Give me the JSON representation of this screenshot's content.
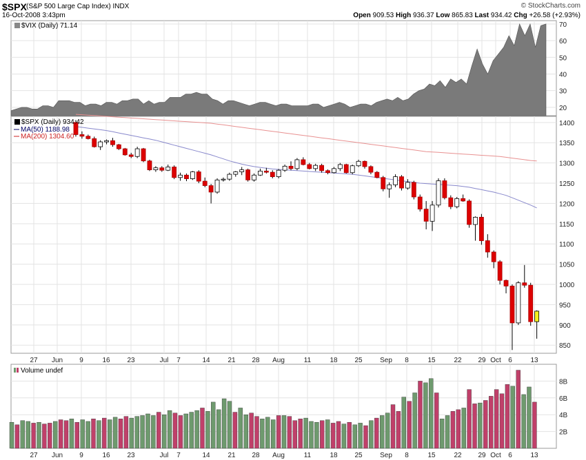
{
  "header": {
    "symbol": "$SPX",
    "symbol_name": "(S&P 500 Large Cap Index) INDX",
    "datetime": "16-Oct-2008 3:43pm",
    "brand": "© StockCharts.com",
    "open_label": "Open",
    "open": "909.53",
    "high_label": "High",
    "high": "936.37",
    "low_label": "Low",
    "low": "865.83",
    "last_label": "Last",
    "last": "934.42",
    "chg_label": "Chg",
    "chg": "+26.58 (+2.93%)"
  },
  "legend": {
    "vix": "$VIX (Daily) 71.14",
    "spx": "$SPX (Daily) 934.42",
    "ma50": "MA(50) 1188.98",
    "ma200": "MA(200) 1304.60",
    "volume": "Volume undef"
  },
  "colors": {
    "up_candle": "#ffffff",
    "down_candle": "#dd0000",
    "vol_up": "#6e9a6e",
    "vol_down": "#c0406a",
    "vix_fill": "#7a7a7a",
    "ma50": "#8888cc",
    "ma200": "#e89090",
    "last_highlight": "#f5f020"
  },
  "chart_data": [
    {
      "type": "area",
      "title": "$VIX (Daily) 71.14",
      "ylim": [
        15,
        72
      ],
      "yticks": [
        20,
        30,
        40,
        50,
        60,
        70
      ],
      "values": [
        18,
        19,
        20,
        20,
        19,
        19,
        21,
        21,
        20,
        24,
        24,
        24,
        23,
        23,
        21,
        22,
        22,
        21,
        23,
        23,
        22,
        24,
        24,
        25,
        25,
        22,
        24,
        22,
        23,
        23,
        26,
        26,
        26,
        28,
        28,
        29,
        28,
        28,
        25,
        24,
        22,
        24,
        24,
        23,
        22,
        21,
        22,
        23,
        23,
        22,
        21,
        22,
        22,
        21,
        21,
        21,
        21,
        22,
        22,
        20,
        21,
        22,
        23,
        22,
        20,
        21,
        22,
        22,
        21,
        23,
        24,
        25,
        24,
        26,
        24,
        25,
        28,
        30,
        31,
        34,
        33,
        36,
        32,
        37,
        35,
        37,
        34,
        45,
        55,
        46,
        40,
        48,
        52,
        56,
        63,
        57,
        70,
        63,
        70,
        56,
        69,
        70
      ]
    },
    {
      "type": "candlestick",
      "title": "$SPX (Daily) 934.42",
      "ylim": [
        830,
        1415
      ],
      "yticks": [
        850,
        900,
        950,
        1000,
        1050,
        1100,
        1150,
        1200,
        1250,
        1300,
        1350,
        1400
      ],
      "x_tick_labels": [
        "27",
        "Jun",
        "9",
        "16",
        "23",
        "Jul",
        "7",
        "14",
        "21",
        "28",
        "Aug",
        "11",
        "18",
        "25",
        "Sep",
        "8",
        "15",
        "22",
        "29",
        "Oct",
        "6",
        "13"
      ],
      "ohlc": [
        [
          1400,
          1406,
          1365,
          1370
        ],
        [
          1370,
          1378,
          1360,
          1366
        ],
        [
          1366,
          1370,
          1358,
          1360
        ],
        [
          1360,
          1365,
          1338,
          1340
        ],
        [
          1340,
          1356,
          1332,
          1352
        ],
        [
          1352,
          1358,
          1346,
          1355
        ],
        [
          1355,
          1362,
          1340,
          1345
        ],
        [
          1345,
          1347,
          1332,
          1335
        ],
        [
          1335,
          1337,
          1318,
          1320
        ],
        [
          1320,
          1325,
          1312,
          1316
        ],
        [
          1316,
          1340,
          1312,
          1335
        ],
        [
          1335,
          1337,
          1302,
          1305
        ],
        [
          1305,
          1308,
          1280,
          1283
        ],
        [
          1283,
          1292,
          1278,
          1288
        ],
        [
          1288,
          1292,
          1278,
          1282
        ],
        [
          1282,
          1296,
          1280,
          1290
        ],
        [
          1290,
          1294,
          1260,
          1264
        ],
        [
          1264,
          1276,
          1256,
          1270
        ],
        [
          1270,
          1274,
          1255,
          1261
        ],
        [
          1261,
          1280,
          1258,
          1278
        ],
        [
          1278,
          1282,
          1250,
          1255
        ],
        [
          1255,
          1264,
          1240,
          1244
        ],
        [
          1244,
          1248,
          1200,
          1228
        ],
        [
          1228,
          1262,
          1224,
          1258
        ],
        [
          1258,
          1264,
          1254,
          1260
        ],
        [
          1260,
          1276,
          1256,
          1272
        ],
        [
          1272,
          1280,
          1266,
          1278
        ],
        [
          1278,
          1290,
          1270,
          1283
        ],
        [
          1283,
          1286,
          1254,
          1258
        ],
        [
          1258,
          1274,
          1254,
          1270
        ],
        [
          1270,
          1286,
          1268,
          1280
        ],
        [
          1280,
          1288,
          1274,
          1277
        ],
        [
          1277,
          1282,
          1262,
          1266
        ],
        [
          1266,
          1285,
          1262,
          1282
        ],
        [
          1282,
          1296,
          1278,
          1292
        ],
        [
          1292,
          1304,
          1282,
          1286
        ],
        [
          1286,
          1312,
          1282,
          1308
        ],
        [
          1308,
          1314,
          1294,
          1296
        ],
        [
          1296,
          1300,
          1284,
          1286
        ],
        [
          1286,
          1298,
          1280,
          1294
        ],
        [
          1294,
          1298,
          1276,
          1281
        ],
        [
          1281,
          1284,
          1272,
          1276
        ],
        [
          1276,
          1290,
          1274,
          1286
        ],
        [
          1286,
          1300,
          1280,
          1296
        ],
        [
          1296,
          1298,
          1274,
          1276
        ],
        [
          1276,
          1296,
          1272,
          1293
        ],
        [
          1293,
          1308,
          1290,
          1304
        ],
        [
          1304,
          1306,
          1286,
          1291
        ],
        [
          1291,
          1294,
          1272,
          1277
        ],
        [
          1277,
          1280,
          1262,
          1264
        ],
        [
          1264,
          1268,
          1230,
          1236
        ],
        [
          1236,
          1252,
          1214,
          1246
        ],
        [
          1246,
          1272,
          1240,
          1266
        ],
        [
          1266,
          1270,
          1232,
          1238
        ],
        [
          1238,
          1260,
          1234,
          1252
        ],
        [
          1252,
          1256,
          1210,
          1216
        ],
        [
          1216,
          1222,
          1180,
          1186
        ],
        [
          1186,
          1206,
          1136,
          1156
        ],
        [
          1156,
          1206,
          1132,
          1196
        ],
        [
          1196,
          1262,
          1190,
          1256
        ],
        [
          1256,
          1262,
          1210,
          1214
        ],
        [
          1214,
          1220,
          1186,
          1192
        ],
        [
          1192,
          1216,
          1188,
          1212
        ],
        [
          1212,
          1222,
          1204,
          1206
        ],
        [
          1206,
          1210,
          1140,
          1148
        ],
        [
          1148,
          1168,
          1108,
          1166
        ],
        [
          1166,
          1174,
          1098,
          1108
        ],
        [
          1108,
          1124,
          1066,
          1080
        ],
        [
          1080,
          1084,
          1040,
          1056
        ],
        [
          1056,
          1060,
          1000,
          1010
        ],
        [
          1010,
          1012,
          978,
          996
        ],
        [
          996,
          1000,
          838,
          905
        ],
        [
          905,
          1008,
          900,
          1004
        ],
        [
          1004,
          1048,
          992,
          998
        ],
        [
          998,
          1004,
          898,
          908
        ],
        [
          908,
          936,
          866,
          934
        ]
      ],
      "ma50": [
        1390,
        1388,
        1386,
        1384,
        1382,
        1380,
        1377,
        1374,
        1371,
        1368,
        1365,
        1362,
        1359,
        1356,
        1352,
        1348,
        1344,
        1340,
        1336,
        1332,
        1328,
        1324,
        1320,
        1315,
        1310,
        1305,
        1301,
        1297,
        1294,
        1291,
        1289,
        1287,
        1285,
        1284,
        1283,
        1282,
        1281,
        1280,
        1279,
        1278,
        1277,
        1276,
        1275,
        1274,
        1273,
        1272,
        1270,
        1268,
        1266,
        1264,
        1262,
        1260,
        1258,
        1256,
        1254,
        1252,
        1250,
        1249,
        1248,
        1247,
        1246,
        1245,
        1244,
        1242,
        1240,
        1237,
        1234,
        1231,
        1228,
        1224,
        1220,
        1214,
        1208,
        1202,
        1196,
        1189
      ],
      "ma200": [
        1420,
        1419,
        1418,
        1417,
        1416,
        1415,
        1414,
        1413,
        1412,
        1411,
        1410,
        1409,
        1408,
        1407,
        1406,
        1405,
        1404,
        1403,
        1402,
        1401,
        1400,
        1399,
        1398,
        1396,
        1394,
        1392,
        1390,
        1388,
        1386,
        1384,
        1382,
        1380,
        1378,
        1376,
        1374,
        1372,
        1370,
        1368,
        1366,
        1364,
        1362,
        1360,
        1358,
        1356,
        1354,
        1352,
        1350,
        1348,
        1346,
        1344,
        1342,
        1340,
        1338,
        1336,
        1334,
        1332,
        1330,
        1328,
        1327,
        1326,
        1325,
        1324,
        1323,
        1322,
        1321,
        1320,
        1319,
        1318,
        1317,
        1316,
        1314,
        1312,
        1310,
        1308,
        1306,
        1305
      ]
    },
    {
      "type": "bar",
      "title": "Volume undef",
      "ylim": [
        0,
        10
      ],
      "yticks": [
        2,
        4,
        6,
        8
      ],
      "ytick_labels": [
        "2B",
        "4B",
        "6B",
        "8B"
      ],
      "x_tick_labels": [
        "27",
        "Jun",
        "9",
        "16",
        "23",
        "Jul",
        "7",
        "14",
        "21",
        "28",
        "Aug",
        "11",
        "18",
        "25",
        "Sep",
        "8",
        "15",
        "22",
        "29",
        "Oct",
        "6",
        "13"
      ],
      "values": [
        3.1,
        2.8,
        3.3,
        3.2,
        3.0,
        3.1,
        2.9,
        3.0,
        3.2,
        3.4,
        3.3,
        3.5,
        3.1,
        3.4,
        3.2,
        3.5,
        3.3,
        3.6,
        3.4,
        3.7,
        3.5,
        3.8,
        3.6,
        3.8,
        3.9,
        4.1,
        3.9,
        4.3,
        4.0,
        4.5,
        4.2,
        3.9,
        4.1,
        4.3,
        4.5,
        4.8,
        4.4,
        5.5,
        4.6,
        5.9,
        5.6,
        4.3,
        4.8,
        4.0,
        4.2,
        3.8,
        3.5,
        3.7,
        3.4,
        3.9,
        3.9,
        3.8,
        3.3,
        3.5,
        3.6,
        3.2,
        3.1,
        3.3,
        3.4,
        3.0,
        3.2,
        2.9,
        3.1,
        2.8,
        3.0,
        2.7,
        3.3,
        3.6,
        3.9,
        4.2,
        5.2,
        4.4,
        6.1,
        5.6,
        6.6,
        8.0,
        7.8,
        8.3,
        6.6,
        3.5,
        3.9,
        4.4,
        4.6,
        4.8,
        7.0,
        5.3,
        5.4,
        5.7,
        6.2,
        7.0,
        6.5,
        7.6,
        7.4,
        9.3,
        6.4,
        7.3,
        5.5
      ],
      "up": [
        1,
        0,
        1,
        1,
        0,
        1,
        0,
        0,
        1,
        0,
        0,
        1,
        0,
        1,
        1,
        0,
        1,
        0,
        1,
        1,
        0,
        0,
        1,
        1,
        1,
        1,
        1,
        0,
        1,
        1,
        0,
        0,
        1,
        1,
        1,
        0,
        1,
        1,
        1,
        1,
        1,
        0,
        1,
        1,
        0,
        0,
        1,
        1,
        1,
        0,
        1,
        0,
        0,
        0,
        1,
        1,
        1,
        0,
        1,
        0,
        0,
        1,
        0,
        1,
        1,
        0,
        1,
        0,
        1,
        1,
        0,
        0,
        1,
        0,
        1,
        0,
        1,
        1,
        0,
        1,
        1,
        0,
        0,
        1,
        0,
        0,
        1,
        0,
        0,
        0,
        0,
        0,
        1,
        0,
        1,
        1,
        0
      ]
    }
  ]
}
